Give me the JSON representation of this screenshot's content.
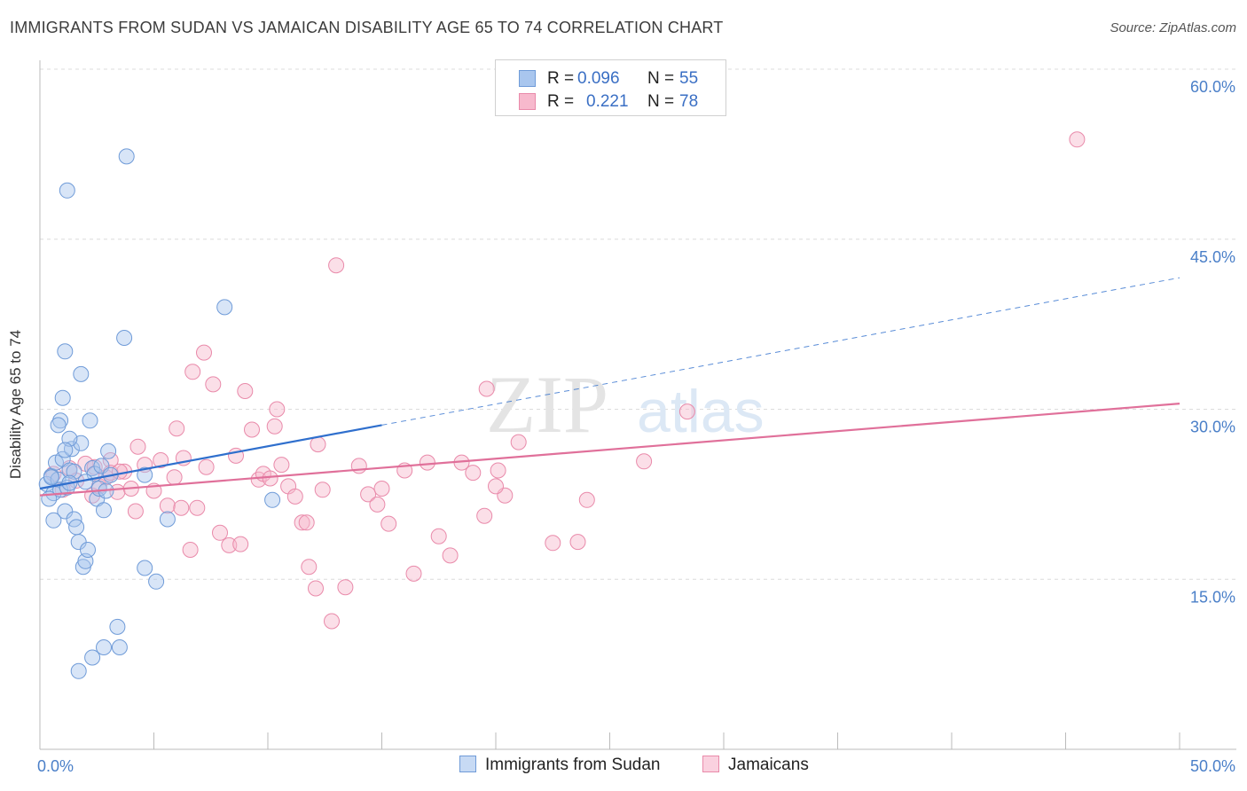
{
  "title": "IMMIGRANTS FROM SUDAN VS JAMAICAN DISABILITY AGE 65 TO 74 CORRELATION CHART",
  "source": "Source: ZipAtlas.com",
  "watermark": {
    "zip": "ZIP",
    "atlas": "atlas"
  },
  "legend": {
    "r_label": "R =",
    "n_label": "N =",
    "rows": [
      {
        "r": "0.096",
        "n": "55",
        "color": "#a9c6ee",
        "border": "#6f9bd8"
      },
      {
        "r": "0.221",
        "n": "78",
        "color": "#f7b9cd",
        "border": "#e98aaa"
      }
    ]
  },
  "chart_data": {
    "type": "scatter",
    "title": "IMMIGRANTS FROM SUDAN VS JAMAICAN DISABILITY AGE 65 TO 74 CORRELATION CHART",
    "xlabel": "",
    "ylabel": "Disability Age 65 to 74",
    "xlim": [
      0,
      50
    ],
    "ylim": [
      0,
      60
    ],
    "x_tick_labels": [
      "0.0%",
      "50.0%"
    ],
    "y_ticks": [
      15,
      30,
      45,
      60
    ],
    "y_tick_labels": [
      "15.0%",
      "30.0%",
      "45.0%",
      "60.0%"
    ],
    "grid": true,
    "legend_position": "top-center",
    "series": [
      {
        "name": "Immigrants from Sudan",
        "color": "#a9c6ee",
        "edge": "#6f9bd8",
        "line_color": "#2f6fcd",
        "trend": {
          "x": [
            0,
            15
          ],
          "y": [
            23.0,
            28.6
          ],
          "dashed_to": [
            50,
            41.6
          ]
        },
        "points": [
          [
            0.3,
            23.4
          ],
          [
            0.5,
            24.1
          ],
          [
            0.6,
            22.6
          ],
          [
            0.7,
            25.3
          ],
          [
            0.8,
            23.8
          ],
          [
            0.9,
            22.9
          ],
          [
            1.0,
            25.6
          ],
          [
            1.1,
            21.0
          ],
          [
            1.2,
            23.1
          ],
          [
            1.3,
            24.6
          ],
          [
            1.4,
            26.5
          ],
          [
            1.5,
            20.3
          ],
          [
            1.6,
            19.6
          ],
          [
            1.7,
            18.3
          ],
          [
            1.8,
            27.0
          ],
          [
            1.9,
            16.1
          ],
          [
            2.0,
            16.6
          ],
          [
            2.1,
            17.6
          ],
          [
            2.2,
            29.0
          ],
          [
            2.3,
            24.8
          ],
          [
            2.4,
            24.3
          ],
          [
            2.5,
            22.1
          ],
          [
            2.6,
            23.0
          ],
          [
            2.7,
            25.0
          ],
          [
            2.8,
            21.1
          ],
          [
            2.9,
            22.8
          ],
          [
            3.0,
            26.3
          ],
          [
            0.4,
            22.1
          ],
          [
            0.9,
            29.0
          ],
          [
            1.1,
            35.1
          ],
          [
            1.0,
            31.0
          ],
          [
            1.3,
            27.4
          ],
          [
            1.8,
            33.1
          ],
          [
            0.8,
            28.6
          ],
          [
            0.6,
            20.2
          ],
          [
            1.5,
            24.5
          ],
          [
            1.2,
            49.3
          ],
          [
            3.8,
            52.3
          ],
          [
            3.7,
            36.3
          ],
          [
            3.4,
            10.8
          ],
          [
            2.8,
            9.0
          ],
          [
            3.5,
            9.0
          ],
          [
            2.3,
            8.1
          ],
          [
            1.7,
            6.9
          ],
          [
            4.6,
            16.0
          ],
          [
            5.1,
            14.8
          ],
          [
            5.6,
            20.3
          ],
          [
            4.6,
            24.2
          ],
          [
            8.1,
            39.0
          ],
          [
            10.2,
            22.0
          ],
          [
            2.0,
            23.6
          ],
          [
            0.5,
            24.0
          ],
          [
            1.3,
            23.5
          ],
          [
            1.1,
            26.4
          ],
          [
            3.1,
            24.2
          ]
        ]
      },
      {
        "name": "Jamaicans",
        "color": "#f7b9cd",
        "edge": "#e98aaa",
        "line_color": "#e0709a",
        "trend": {
          "x": [
            0,
            50
          ],
          "y": [
            22.4,
            30.5
          ]
        },
        "points": [
          [
            0.6,
            24.3
          ],
          [
            1.0,
            22.9
          ],
          [
            1.3,
            24.8
          ],
          [
            1.6,
            23.7
          ],
          [
            2.0,
            25.2
          ],
          [
            2.3,
            22.4
          ],
          [
            2.6,
            23.2
          ],
          [
            2.9,
            24.0
          ],
          [
            3.1,
            25.5
          ],
          [
            3.4,
            22.7
          ],
          [
            3.7,
            24.5
          ],
          [
            4.0,
            23.0
          ],
          [
            4.3,
            26.7
          ],
          [
            4.6,
            25.1
          ],
          [
            5.0,
            22.8
          ],
          [
            5.3,
            25.5
          ],
          [
            5.6,
            21.5
          ],
          [
            6.0,
            28.3
          ],
          [
            6.3,
            25.7
          ],
          [
            6.6,
            17.6
          ],
          [
            6.9,
            21.3
          ],
          [
            7.3,
            24.9
          ],
          [
            7.6,
            32.2
          ],
          [
            7.9,
            19.1
          ],
          [
            8.3,
            18.0
          ],
          [
            8.6,
            25.9
          ],
          [
            9.0,
            31.6
          ],
          [
            9.3,
            28.2
          ],
          [
            9.6,
            23.8
          ],
          [
            9.8,
            24.3
          ],
          [
            10.1,
            23.9
          ],
          [
            10.4,
            30.0
          ],
          [
            10.6,
            25.1
          ],
          [
            10.9,
            23.2
          ],
          [
            11.2,
            22.3
          ],
          [
            11.5,
            20.0
          ],
          [
            11.8,
            16.1
          ],
          [
            12.1,
            14.2
          ],
          [
            12.4,
            22.9
          ],
          [
            12.8,
            11.3
          ],
          [
            13.0,
            42.7
          ],
          [
            13.4,
            14.3
          ],
          [
            14.0,
            25.0
          ],
          [
            14.4,
            22.5
          ],
          [
            14.8,
            21.6
          ],
          [
            15.3,
            19.9
          ],
          [
            16.0,
            24.6
          ],
          [
            16.4,
            15.5
          ],
          [
            17.0,
            25.3
          ],
          [
            17.5,
            18.8
          ],
          [
            18.0,
            17.1
          ],
          [
            18.5,
            25.3
          ],
          [
            19.0,
            24.4
          ],
          [
            19.5,
            20.6
          ],
          [
            19.6,
            31.8
          ],
          [
            20.1,
            24.6
          ],
          [
            20.4,
            22.4
          ],
          [
            21.0,
            27.1
          ],
          [
            22.5,
            18.2
          ],
          [
            23.6,
            18.3
          ],
          [
            24.0,
            22.0
          ],
          [
            26.5,
            25.4
          ],
          [
            28.4,
            29.8
          ],
          [
            45.5,
            53.8
          ],
          [
            6.7,
            33.3
          ],
          [
            7.2,
            35.0
          ],
          [
            3.1,
            24.4
          ],
          [
            2.4,
            24.9
          ],
          [
            5.9,
            24.0
          ],
          [
            3.5,
            24.5
          ],
          [
            4.2,
            21.0
          ],
          [
            6.2,
            21.3
          ],
          [
            8.8,
            18.1
          ],
          [
            12.2,
            26.9
          ],
          [
            15.0,
            23.0
          ],
          [
            10.3,
            28.5
          ],
          [
            11.7,
            20.0
          ],
          [
            20.0,
            23.2
          ]
        ]
      }
    ]
  }
}
